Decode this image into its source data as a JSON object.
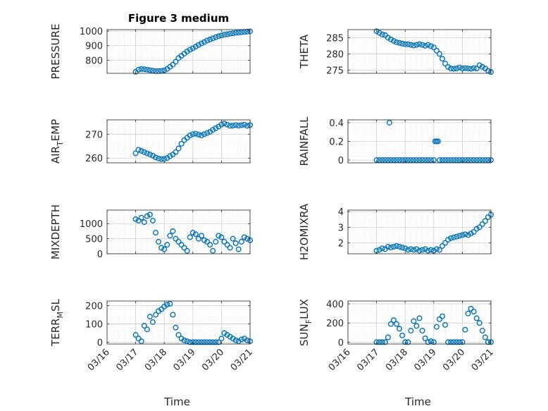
{
  "chart_data": [
    {
      "type": "scatter",
      "title": "Figure 3 medium",
      "ylabel": "PRESSURE",
      "ylabel_sub": "",
      "ylabel_tail": "",
      "xlabel": "",
      "xlim": [
        "03/16",
        "03/21"
      ],
      "ylim": [
        710,
        1010
      ],
      "yticks": [
        800,
        900,
        1000
      ],
      "ytick_labels": [
        "800",
        "900",
        "1000"
      ],
      "grid": true,
      "marker": "circle",
      "color": "#0072BD",
      "x": [
        1.0,
        1.1,
        1.2,
        1.3,
        1.4,
        1.5,
        1.6,
        1.7,
        1.8,
        1.9,
        2.0,
        2.1,
        2.2,
        2.3,
        2.4,
        2.5,
        2.6,
        2.7,
        2.8,
        2.9,
        3.0,
        3.1,
        3.2,
        3.3,
        3.4,
        3.5,
        3.6,
        3.7,
        3.8,
        3.9,
        4.0,
        4.1,
        4.2,
        4.3,
        4.4,
        4.5,
        4.6,
        4.7,
        4.8,
        4.9,
        5.0
      ],
      "y": [
        720,
        735,
        740,
        738,
        735,
        732,
        728,
        725,
        725,
        727,
        730,
        740,
        755,
        770,
        790,
        815,
        830,
        845,
        860,
        872,
        882,
        893,
        905,
        915,
        925,
        935,
        942,
        950,
        958,
        965,
        970,
        975,
        978,
        982,
        985,
        988,
        990,
        992,
        994,
        996,
        998
      ]
    },
    {
      "type": "scatter",
      "title": "",
      "ylabel": "THETA",
      "ylabel_sub": "",
      "ylabel_tail": "",
      "xlabel": "",
      "xlim": [
        "03/16",
        "03/21"
      ],
      "ylim": [
        274,
        287.5
      ],
      "yticks": [
        275,
        280,
        285
      ],
      "ytick_labels": [
        "275",
        "280",
        "285"
      ],
      "grid": true,
      "marker": "circle",
      "color": "#0072BD",
      "x": [
        1.0,
        1.1,
        1.2,
        1.3,
        1.4,
        1.5,
        1.6,
        1.7,
        1.8,
        1.9,
        2.0,
        2.1,
        2.2,
        2.3,
        2.4,
        2.5,
        2.6,
        2.7,
        2.8,
        2.9,
        3.0,
        3.1,
        3.2,
        3.3,
        3.4,
        3.5,
        3.6,
        3.7,
        3.8,
        3.9,
        4.0,
        4.1,
        4.2,
        4.3,
        4.4,
        4.5,
        4.6,
        4.7,
        4.8,
        4.9,
        5.0
      ],
      "y": [
        287,
        286.5,
        286,
        285.8,
        285,
        284.5,
        284,
        283.6,
        283.4,
        283.2,
        283,
        283,
        282.8,
        282.6,
        282.8,
        283,
        282.8,
        282.5,
        282.8,
        282.4,
        282,
        281,
        280,
        278.5,
        277,
        276,
        275.5,
        275.4,
        275.5,
        275.8,
        275.5,
        275.6,
        275.5,
        275.4,
        275.6,
        275.5,
        276.5,
        276,
        275.5,
        274.8,
        274.4
      ]
    },
    {
      "type": "scatter",
      "title": "",
      "ylabel": "AIR",
      "ylabel_sub": "T",
      "ylabel_tail": "EMP",
      "xlabel": "",
      "xlim": [
        "03/16",
        "03/21"
      ],
      "ylim": [
        258,
        276
      ],
      "yticks": [
        260,
        270
      ],
      "ytick_labels": [
        "260",
        "270"
      ],
      "grid": true,
      "marker": "circle",
      "color": "#0072BD",
      "x": [
        1.0,
        1.1,
        1.2,
        1.3,
        1.4,
        1.5,
        1.6,
        1.7,
        1.8,
        1.9,
        2.0,
        2.1,
        2.2,
        2.3,
        2.4,
        2.5,
        2.6,
        2.7,
        2.8,
        2.9,
        3.0,
        3.1,
        3.2,
        3.3,
        3.4,
        3.5,
        3.6,
        3.7,
        3.8,
        3.9,
        4.0,
        4.1,
        4.2,
        4.3,
        4.4,
        4.5,
        4.6,
        4.7,
        4.8,
        4.9,
        5.0
      ],
      "y": [
        262,
        263.5,
        263,
        262.5,
        262,
        261.5,
        261,
        260.3,
        259.8,
        259.6,
        259.6,
        260,
        260.8,
        261.5,
        262.5,
        264,
        266,
        267.5,
        268.5,
        269.5,
        270,
        270.2,
        269.8,
        269.5,
        270,
        270.5,
        271,
        271.8,
        272.5,
        273.2,
        274,
        274.5,
        274,
        273.5,
        273.6,
        273.8,
        273.6,
        273.8,
        274,
        273.5,
        273.8
      ]
    },
    {
      "type": "scatter",
      "title": "",
      "ylabel": "RAINFALL",
      "ylabel_sub": "",
      "ylabel_tail": "",
      "xlabel": "",
      "xlim": [
        "03/16",
        "03/21"
      ],
      "ylim": [
        -0.03,
        0.43
      ],
      "yticks": [
        0,
        0.2,
        0.4
      ],
      "ytick_labels": [
        "0",
        "0.2",
        "0.4"
      ],
      "grid": true,
      "marker": "circle",
      "color": "#0072BD",
      "x": [
        1.0,
        1.1,
        1.2,
        1.3,
        1.4,
        1.5,
        1.6,
        1.7,
        1.8,
        1.9,
        2.0,
        2.1,
        2.2,
        2.3,
        2.4,
        2.5,
        2.6,
        2.7,
        2.8,
        2.9,
        3.0,
        3.05,
        3.1,
        3.15,
        3.2,
        3.3,
        3.4,
        3.5,
        3.6,
        3.7,
        3.8,
        3.9,
        4.0,
        4.1,
        4.2,
        4.3,
        4.4,
        4.5,
        4.6,
        4.7,
        4.8,
        4.9,
        5.0,
        1.45
      ],
      "y": [
        0,
        0,
        0,
        0,
        0,
        0,
        0,
        0,
        0,
        0,
        0,
        0,
        0,
        0,
        0,
        0,
        0,
        0,
        0,
        0,
        0,
        0.2,
        0.2,
        0.2,
        0,
        0,
        0,
        0,
        0,
        0,
        0,
        0,
        0,
        0,
        0,
        0,
        0,
        0,
        0,
        0,
        0,
        0,
        0,
        0.4
      ]
    },
    {
      "type": "scatter",
      "title": "",
      "ylabel": "MIXDEPTH",
      "ylabel_sub": "",
      "ylabel_tail": "",
      "xlabel": "",
      "xlim": [
        "03/16",
        "03/21"
      ],
      "ylim": [
        0,
        1450
      ],
      "yticks": [
        0,
        500,
        1000
      ],
      "ytick_labels": [
        "0",
        "500",
        "1000"
      ],
      "grid": true,
      "marker": "circle",
      "color": "#0072BD",
      "x": [
        1.0,
        1.1,
        1.2,
        1.3,
        1.4,
        1.5,
        1.6,
        1.7,
        1.8,
        1.9,
        2.0,
        2.1,
        2.2,
        2.3,
        2.4,
        2.5,
        2.6,
        2.7,
        2.8,
        2.9,
        3.0,
        3.1,
        3.2,
        3.3,
        3.4,
        3.5,
        3.6,
        3.7,
        3.8,
        3.9,
        4.0,
        4.1,
        4.2,
        4.3,
        4.4,
        4.5,
        4.6,
        4.7,
        4.8,
        4.9,
        5.0
      ],
      "y": [
        1150,
        1100,
        1200,
        1050,
        1250,
        1300,
        1100,
        700,
        400,
        200,
        150,
        300,
        600,
        750,
        500,
        400,
        300,
        200,
        100,
        550,
        700,
        650,
        500,
        600,
        450,
        400,
        300,
        100,
        400,
        600,
        550,
        400,
        300,
        200,
        500,
        350,
        150,
        400,
        550,
        500,
        450
      ]
    },
    {
      "type": "scatter",
      "title": "",
      "ylabel": "H2OMIXRA",
      "ylabel_sub": "",
      "ylabel_tail": "",
      "xlabel": "",
      "xlim": [
        "03/16",
        "03/21"
      ],
      "ylim": [
        1.3,
        4.1
      ],
      "yticks": [
        2,
        3,
        4
      ],
      "ytick_labels": [
        "2",
        "3",
        "4"
      ],
      "grid": true,
      "marker": "circle",
      "color": "#0072BD",
      "x": [
        1.0,
        1.1,
        1.2,
        1.3,
        1.4,
        1.5,
        1.6,
        1.7,
        1.8,
        1.9,
        2.0,
        2.1,
        2.2,
        2.3,
        2.4,
        2.5,
        2.6,
        2.7,
        2.8,
        2.9,
        3.0,
        3.1,
        3.2,
        3.3,
        3.4,
        3.5,
        3.6,
        3.7,
        3.8,
        3.9,
        4.0,
        4.1,
        4.2,
        4.3,
        4.4,
        4.5,
        4.6,
        4.7,
        4.8,
        4.9,
        5.0
      ],
      "y": [
        1.5,
        1.55,
        1.65,
        1.6,
        1.75,
        1.7,
        1.75,
        1.8,
        1.75,
        1.7,
        1.65,
        1.55,
        1.6,
        1.55,
        1.6,
        1.5,
        1.55,
        1.6,
        1.5,
        1.55,
        1.5,
        1.6,
        1.55,
        1.8,
        2.0,
        2.2,
        2.3,
        2.35,
        2.4,
        2.45,
        2.5,
        2.55,
        2.5,
        2.6,
        2.7,
        2.9,
        3.0,
        3.2,
        3.4,
        3.65,
        3.8
      ]
    },
    {
      "type": "scatter",
      "title": "",
      "ylabel": "TERR",
      "ylabel_sub": "M",
      "ylabel_tail": "SL",
      "xlabel": "Time",
      "xlim": [
        "03/16",
        "03/21"
      ],
      "ylim": [
        -10,
        225
      ],
      "yticks": [
        0,
        100,
        200
      ],
      "ytick_labels": [
        "0",
        "100",
        "200"
      ],
      "xtick_labels": [
        "03/16",
        "03/17",
        "03/18",
        "03/19",
        "03/20",
        "03/21"
      ],
      "grid": true,
      "marker": "circle",
      "color": "#0072BD",
      "x": [
        1.0,
        1.1,
        1.2,
        1.3,
        1.4,
        1.5,
        1.6,
        1.7,
        1.8,
        1.9,
        2.0,
        2.1,
        2.2,
        2.3,
        2.4,
        2.5,
        2.6,
        2.7,
        2.8,
        2.9,
        3.0,
        3.1,
        3.2,
        3.3,
        3.4,
        3.5,
        3.6,
        3.7,
        3.8,
        3.9,
        4.0,
        4.1,
        4.2,
        4.3,
        4.4,
        4.5,
        4.6,
        4.7,
        4.8,
        4.9,
        5.0
      ],
      "y": [
        40,
        20,
        5,
        90,
        70,
        140,
        110,
        150,
        170,
        180,
        195,
        205,
        210,
        150,
        80,
        40,
        20,
        10,
        5,
        0,
        0,
        0,
        0,
        0,
        0,
        0,
        0,
        0,
        0,
        0,
        20,
        50,
        40,
        30,
        20,
        10,
        5,
        15,
        20,
        10,
        5
      ]
    },
    {
      "type": "scatter",
      "title": "",
      "ylabel": "SUN",
      "ylabel_sub": "F",
      "ylabel_tail": "LUX",
      "xlabel": "Time",
      "xlim": [
        "03/16",
        "03/21"
      ],
      "ylim": [
        -20,
        430
      ],
      "yticks": [
        0,
        200,
        400
      ],
      "ytick_labels": [
        "0",
        "200",
        "400"
      ],
      "xtick_labels": [
        "03/16",
        "03/17",
        "03/18",
        "03/19",
        "03/20",
        "03/21"
      ],
      "grid": true,
      "marker": "circle",
      "color": "#0072BD",
      "x": [
        1.0,
        1.1,
        1.2,
        1.3,
        1.4,
        1.5,
        1.6,
        1.7,
        1.8,
        1.9,
        2.0,
        2.1,
        2.2,
        2.3,
        2.4,
        2.5,
        2.6,
        2.7,
        2.8,
        2.9,
        3.0,
        3.1,
        3.2,
        3.3,
        3.4,
        3.5,
        3.6,
        3.7,
        3.8,
        3.9,
        4.0,
        4.1,
        4.2,
        4.3,
        4.4,
        4.5,
        4.6,
        4.7,
        4.8,
        4.9,
        5.0
      ],
      "y": [
        0,
        0,
        0,
        0,
        50,
        190,
        230,
        190,
        140,
        70,
        0,
        0,
        120,
        220,
        170,
        250,
        120,
        40,
        0,
        10,
        0,
        160,
        240,
        270,
        180,
        0,
        0,
        0,
        0,
        0,
        0,
        130,
        300,
        350,
        320,
        250,
        200,
        120,
        50,
        0,
        0
      ]
    }
  ]
}
